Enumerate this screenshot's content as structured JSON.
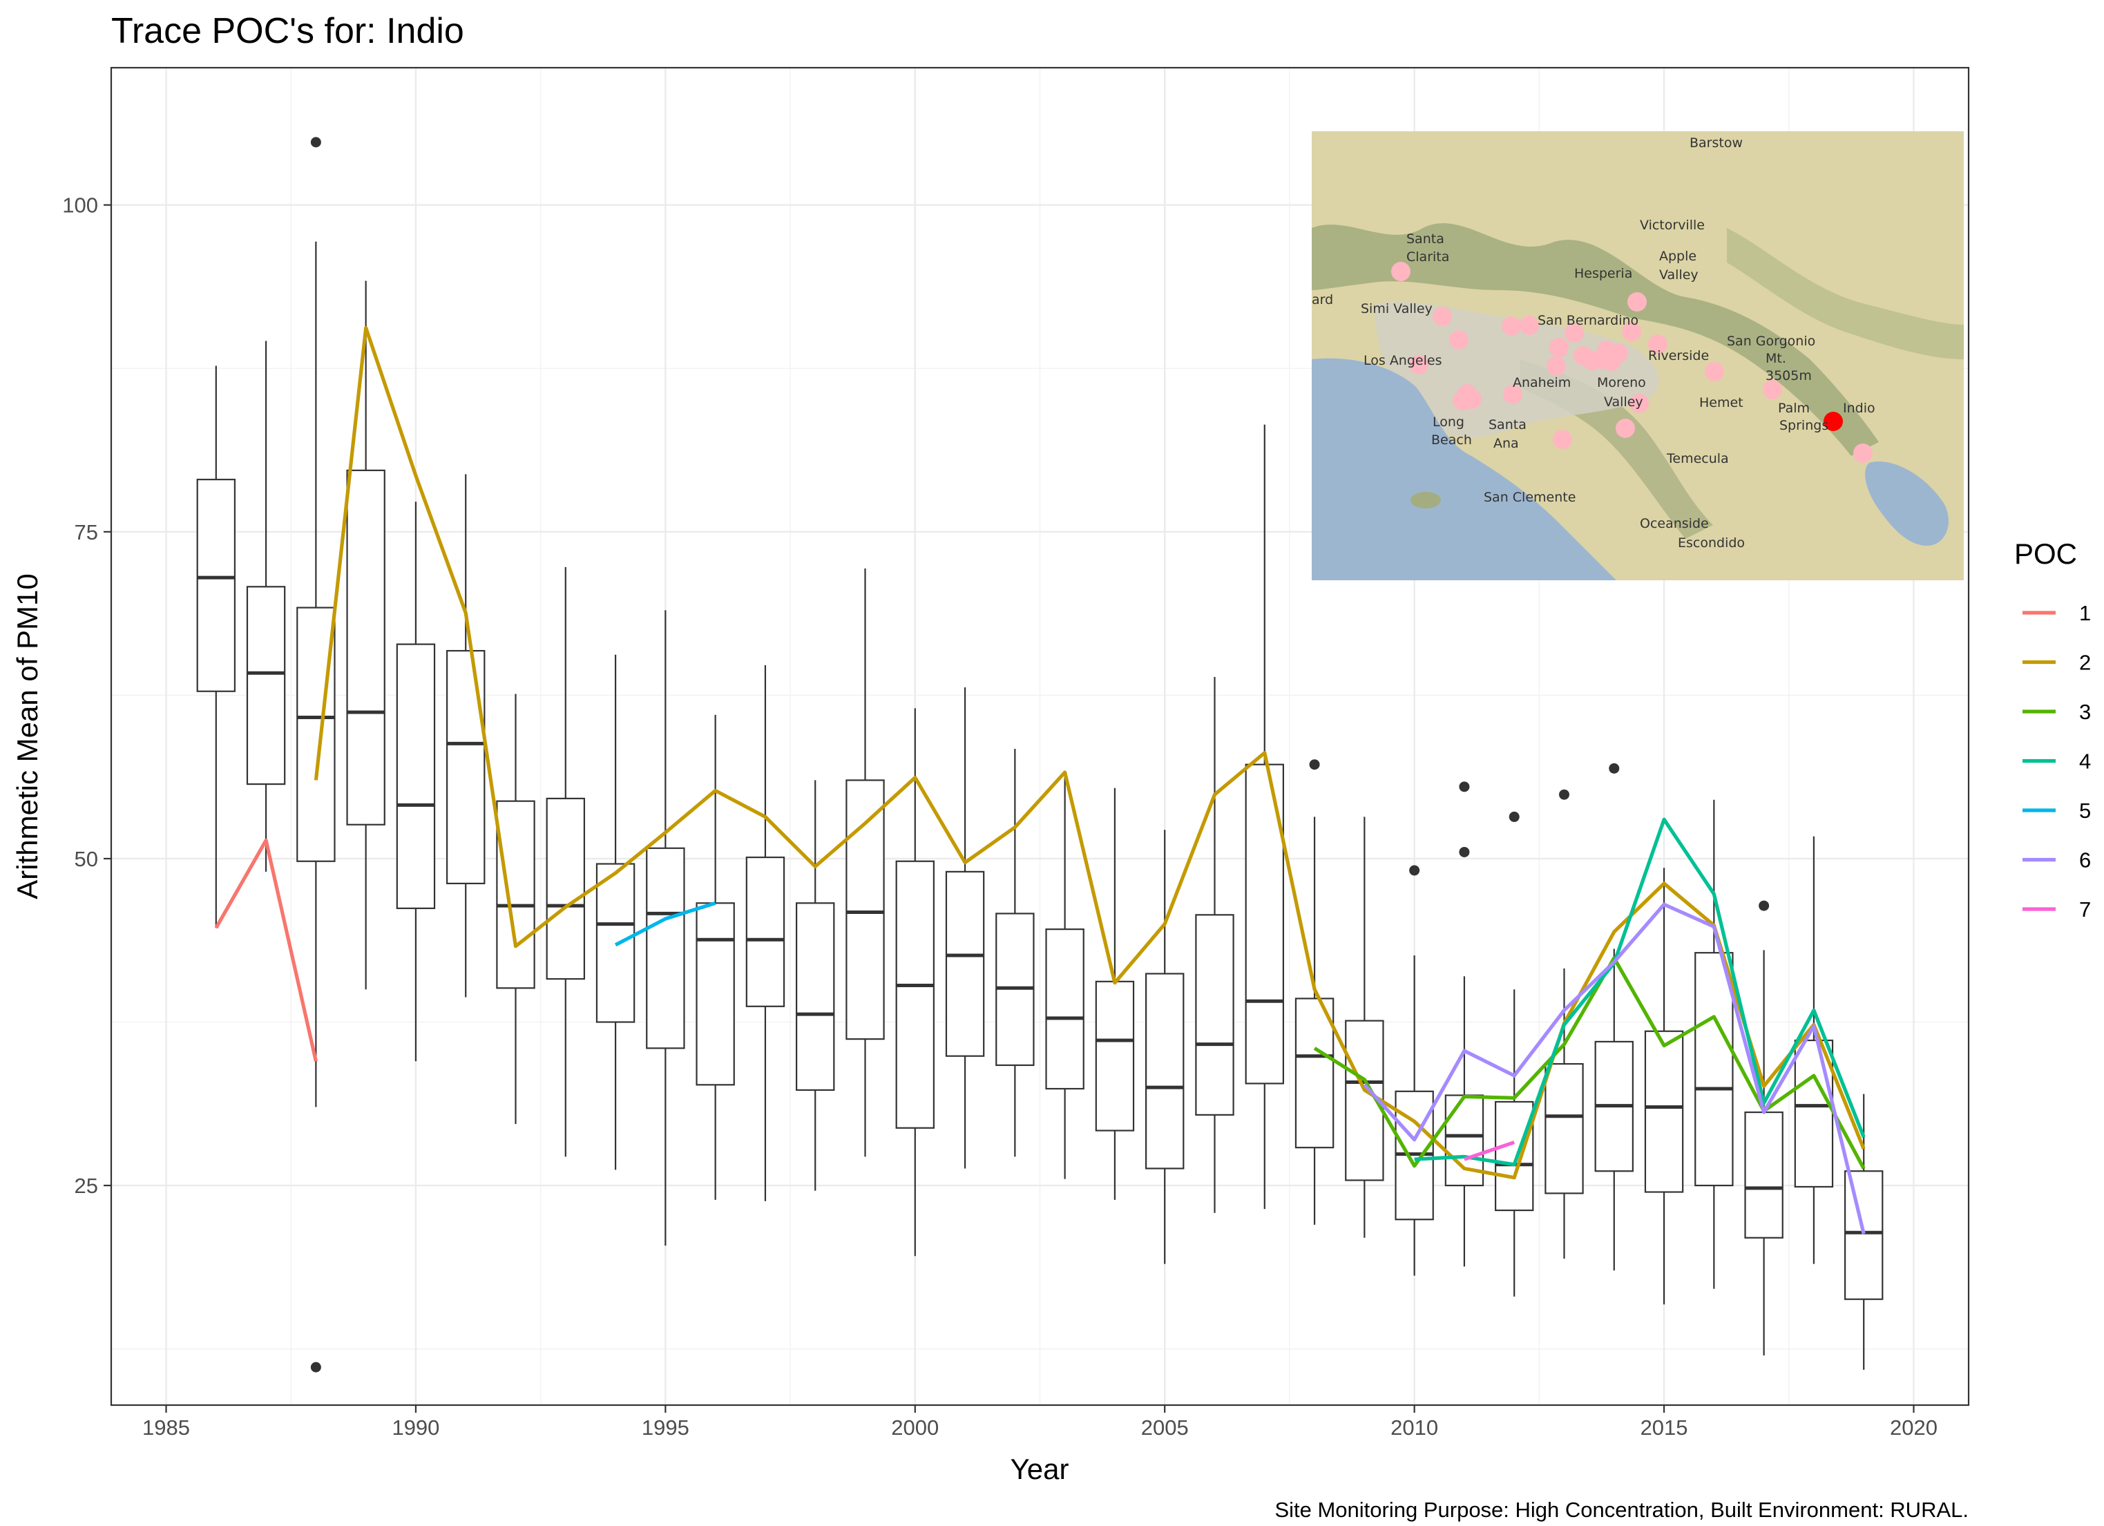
{
  "chart_data": {
    "type": "box",
    "title": "Trace POC's for: Indio",
    "xlabel": "Year",
    "ylabel": "Arithmetic Mean of PM10",
    "caption": "Site Monitoring Purpose: High Concentration, Built Environment: RURAL.",
    "xlim": [
      1983.9,
      2021.1
    ],
    "ylim": [
      8.2,
      110.5
    ],
    "x_ticks": [
      1985,
      1990,
      1995,
      2000,
      2005,
      2010,
      2015,
      2020
    ],
    "y_ticks": [
      25,
      50,
      75,
      100
    ],
    "grid": true,
    "legend": {
      "title": "POC",
      "placement": "right",
      "entries": [
        {
          "label": "1",
          "color": "#F8766D"
        },
        {
          "label": "2",
          "color": "#C49A00"
        },
        {
          "label": "3",
          "color": "#53B400"
        },
        {
          "label": "4",
          "color": "#00C094"
        },
        {
          "label": "5",
          "color": "#00B6EB"
        },
        {
          "label": "6",
          "color": "#A58AFF"
        },
        {
          "label": "7",
          "color": "#FB61D7"
        }
      ]
    },
    "boxes": [
      {
        "year": 1986,
        "low": 44.7,
        "q1": 62.8,
        "median": 71.5,
        "q3": 79.0,
        "high": 87.7,
        "outliers": []
      },
      {
        "year": 1987,
        "low": 49.0,
        "q1": 55.7,
        "median": 64.2,
        "q3": 70.8,
        "high": 89.6,
        "outliers": []
      },
      {
        "year": 1988,
        "low": 31.0,
        "q1": 49.8,
        "median": 60.8,
        "q3": 69.2,
        "high": 97.2,
        "outliers": [
          104.8,
          11.1
        ]
      },
      {
        "year": 1989,
        "low": 40.0,
        "q1": 52.6,
        "median": 61.2,
        "q3": 79.7,
        "high": 94.2,
        "outliers": []
      },
      {
        "year": 1990,
        "low": 34.5,
        "q1": 46.2,
        "median": 54.1,
        "q3": 66.4,
        "high": 77.3,
        "outliers": []
      },
      {
        "year": 1991,
        "low": 39.4,
        "q1": 48.1,
        "median": 58.8,
        "q3": 65.9,
        "high": 79.4,
        "outliers": []
      },
      {
        "year": 1992,
        "low": 29.7,
        "q1": 40.1,
        "median": 46.4,
        "q3": 54.4,
        "high": 62.6,
        "outliers": []
      },
      {
        "year": 1993,
        "low": 27.2,
        "q1": 40.8,
        "median": 46.4,
        "q3": 54.6,
        "high": 72.3,
        "outliers": []
      },
      {
        "year": 1994,
        "low": 26.2,
        "q1": 37.5,
        "median": 45.0,
        "q3": 49.6,
        "high": 65.6,
        "outliers": []
      },
      {
        "year": 1995,
        "low": 20.4,
        "q1": 35.5,
        "median": 45.8,
        "q3": 50.8,
        "high": 69.0,
        "outliers": []
      },
      {
        "year": 1996,
        "low": 23.9,
        "q1": 32.7,
        "median": 43.8,
        "q3": 46.6,
        "high": 61.0,
        "outliers": []
      },
      {
        "year": 1997,
        "low": 23.8,
        "q1": 38.7,
        "median": 43.8,
        "q3": 50.1,
        "high": 64.8,
        "outliers": []
      },
      {
        "year": 1998,
        "low": 24.6,
        "q1": 32.3,
        "median": 38.1,
        "q3": 46.6,
        "high": 56.0,
        "outliers": []
      },
      {
        "year": 1999,
        "low": 27.2,
        "q1": 36.2,
        "median": 45.9,
        "q3": 56.0,
        "high": 72.2,
        "outliers": []
      },
      {
        "year": 2000,
        "low": 19.6,
        "q1": 29.4,
        "median": 40.3,
        "q3": 49.8,
        "high": 61.5,
        "outliers": []
      },
      {
        "year": 2001,
        "low": 26.3,
        "q1": 34.9,
        "median": 42.6,
        "q3": 49.0,
        "high": 63.1,
        "outliers": []
      },
      {
        "year": 2002,
        "low": 27.2,
        "q1": 34.2,
        "median": 40.1,
        "q3": 45.8,
        "high": 58.4,
        "outliers": []
      },
      {
        "year": 2003,
        "low": 25.5,
        "q1": 32.4,
        "median": 37.8,
        "q3": 44.6,
        "high": 56.2,
        "outliers": []
      },
      {
        "year": 2004,
        "low": 23.9,
        "q1": 29.2,
        "median": 36.1,
        "q3": 40.6,
        "high": 55.4,
        "outliers": []
      },
      {
        "year": 2005,
        "low": 19.0,
        "q1": 26.3,
        "median": 32.5,
        "q3": 41.2,
        "high": 52.2,
        "outliers": []
      },
      {
        "year": 2006,
        "low": 22.9,
        "q1": 30.4,
        "median": 35.8,
        "q3": 45.7,
        "high": 63.9,
        "outliers": []
      },
      {
        "year": 2007,
        "low": 23.2,
        "q1": 32.8,
        "median": 39.1,
        "q3": 57.2,
        "high": 83.2,
        "outliers": []
      },
      {
        "year": 2008,
        "low": 22.0,
        "q1": 27.9,
        "median": 34.9,
        "q3": 39.3,
        "high": 53.2,
        "outliers": [
          57.2
        ]
      },
      {
        "year": 2009,
        "low": 21.0,
        "q1": 25.4,
        "median": 32.9,
        "q3": 37.6,
        "high": 53.2,
        "outliers": []
      },
      {
        "year": 2010,
        "low": 18.1,
        "q1": 22.4,
        "median": 27.4,
        "q3": 32.2,
        "high": 42.6,
        "outliers": [
          49.1
        ]
      },
      {
        "year": 2011,
        "low": 18.8,
        "q1": 25.0,
        "median": 28.8,
        "q3": 31.9,
        "high": 41.0,
        "outliers": [
          55.5,
          50.5
        ]
      },
      {
        "year": 2012,
        "low": 16.5,
        "q1": 23.1,
        "median": 26.6,
        "q3": 31.4,
        "high": 40.0,
        "outliers": [
          53.2
        ]
      },
      {
        "year": 2013,
        "low": 19.4,
        "q1": 24.4,
        "median": 30.3,
        "q3": 34.3,
        "high": 41.6,
        "outliers": [
          54.9
        ]
      },
      {
        "year": 2014,
        "low": 18.5,
        "q1": 26.1,
        "median": 31.1,
        "q3": 36.0,
        "high": 43.1,
        "outliers": [
          56.9
        ]
      },
      {
        "year": 2015,
        "low": 15.9,
        "q1": 24.5,
        "median": 31.0,
        "q3": 36.8,
        "high": 49.3,
        "outliers": []
      },
      {
        "year": 2016,
        "low": 17.1,
        "q1": 25.0,
        "median": 32.4,
        "q3": 42.8,
        "high": 54.5,
        "outliers": []
      },
      {
        "year": 2017,
        "low": 12.0,
        "q1": 21.0,
        "median": 24.8,
        "q3": 30.6,
        "high": 43.0,
        "outliers": [
          46.4
        ]
      },
      {
        "year": 2018,
        "low": 19.0,
        "q1": 24.9,
        "median": 31.1,
        "q3": 36.1,
        "high": 51.7,
        "outliers": []
      },
      {
        "year": 2019,
        "low": 10.9,
        "q1": 16.3,
        "median": 21.4,
        "q3": 26.1,
        "high": 32.0,
        "outliers": []
      }
    ],
    "series": [
      {
        "name": "1",
        "color": "#F8766D",
        "x": [
          1986,
          1987,
          1988
        ],
        "y": [
          44.7,
          51.4,
          34.5
        ]
      },
      {
        "name": "2",
        "color": "#C49A00",
        "x": [
          1988,
          1989,
          1990,
          1991,
          1992,
          1993,
          1994,
          1995,
          1996,
          1997,
          1998,
          1999,
          2000,
          2001,
          2002,
          2003,
          2004,
          2005,
          2006,
          2007,
          2008,
          2009,
          2010,
          2011,
          2012,
          2013,
          2014,
          2015,
          2016,
          2017,
          2018,
          2019
        ],
        "y": [
          56.0,
          90.6,
          79.3,
          68.8,
          43.3,
          46.3,
          48.9,
          52.0,
          55.2,
          53.2,
          49.4,
          52.7,
          56.2,
          49.7,
          52.4,
          56.6,
          40.5,
          45.0,
          54.9,
          58.1,
          40.0,
          32.3,
          29.9,
          26.3,
          25.6,
          37.4,
          44.4,
          48.1,
          44.9,
          32.6,
          37.3,
          27.8
        ]
      },
      {
        "name": "3",
        "color": "#53B400",
        "x": [
          2008,
          2009,
          2010,
          2011,
          2012,
          2013,
          2014,
          2015,
          2016,
          2017,
          2018,
          2019
        ],
        "y": [
          35.5,
          33.1,
          26.5,
          31.8,
          31.7,
          35.8,
          42.4,
          35.7,
          37.9,
          30.7,
          33.4,
          26.3
        ]
      },
      {
        "name": "4",
        "color": "#00C094",
        "x": [
          2010,
          2011,
          2012,
          2013,
          2014,
          2015,
          2016,
          2017,
          2018,
          2019
        ],
        "y": [
          27.0,
          27.2,
          26.6,
          37.3,
          42.0,
          53.0,
          47.3,
          31.3,
          38.4,
          28.7
        ]
      },
      {
        "name": "5",
        "color": "#00B6EB",
        "x": [
          1994,
          1995,
          1996
        ],
        "y": [
          43.4,
          45.4,
          46.6
        ]
      },
      {
        "name": "6",
        "color": "#A58AFF",
        "x": [
          2009,
          2010,
          2011,
          2012,
          2013,
          2014,
          2015,
          2016,
          2017,
          2018,
          2019
        ],
        "y": [
          32.7,
          28.5,
          35.3,
          33.4,
          38.4,
          42.1,
          46.5,
          44.8,
          30.6,
          37.2,
          21.3
        ]
      },
      {
        "name": "7",
        "color": "#FB61D7",
        "x": [
          2011,
          2012
        ],
        "y": [
          27.0,
          28.3
        ]
      }
    ]
  },
  "inset_map": {
    "place_labels": [
      "Barstow",
      "Victorville",
      "Apple",
      "Valley",
      "Hesperia",
      "Santa",
      "Clarita",
      "ard",
      "Simi Valley",
      "San Bernardino",
      "San Gorgonio",
      "Mt.",
      "3505m",
      "Los Angeles",
      "Riverside",
      "Anaheim",
      "Moreno",
      "Valley",
      "Hemet",
      "Long",
      "Beach",
      "Santa",
      "Ana",
      "Palm",
      "Springs",
      "Indio",
      "Temecula",
      "San Clemente",
      "Oceanside",
      "Escondido"
    ],
    "site_color": "#FFB6C1",
    "highlight_color": "#FF0000"
  }
}
